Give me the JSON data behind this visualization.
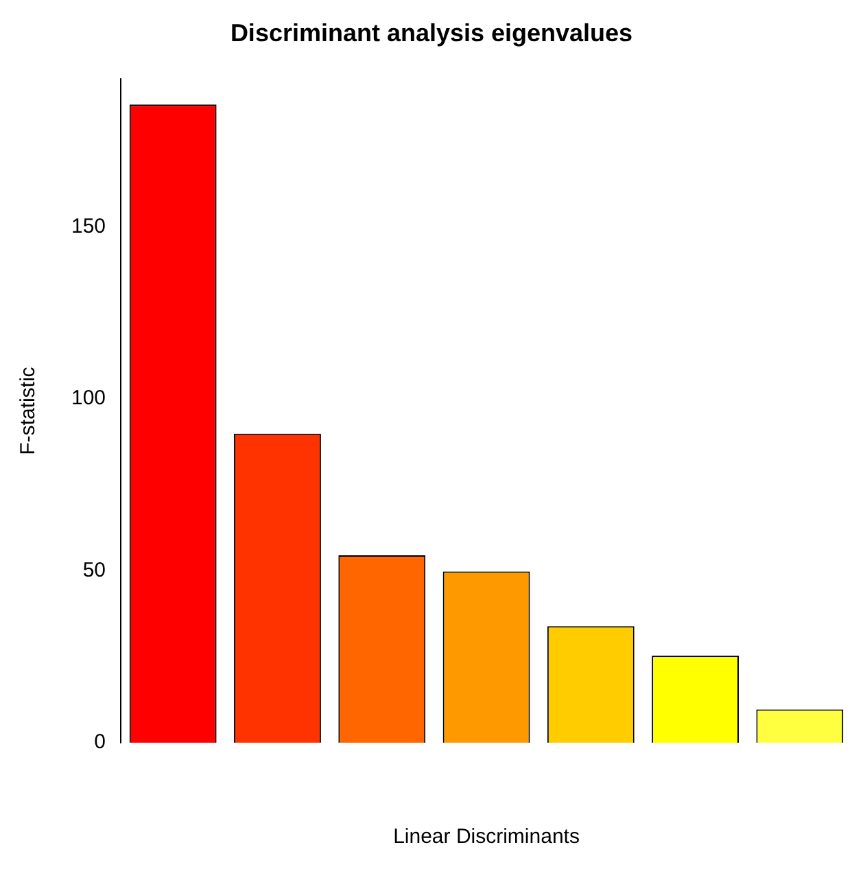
{
  "chart_data": {
    "type": "bar",
    "title": "Discriminant analysis eigenvalues",
    "xlabel": "Linear Discriminants",
    "ylabel": "F-statistic",
    "categories": [
      null,
      null,
      null,
      null,
      null,
      null,
      null
    ],
    "values": [
      185.6,
      89.9,
      54.5,
      49.8,
      33.9,
      25.3,
      9.7
    ],
    "colors": [
      "#ff0000",
      "#ff3300",
      "#ff6600",
      "#ff9900",
      "#ffcc00",
      "#ffff00",
      "#ffff40"
    ],
    "ylim": [
      0,
      193
    ],
    "yticks": [
      0,
      50,
      100,
      150
    ],
    "grid": false,
    "legend": false
  }
}
